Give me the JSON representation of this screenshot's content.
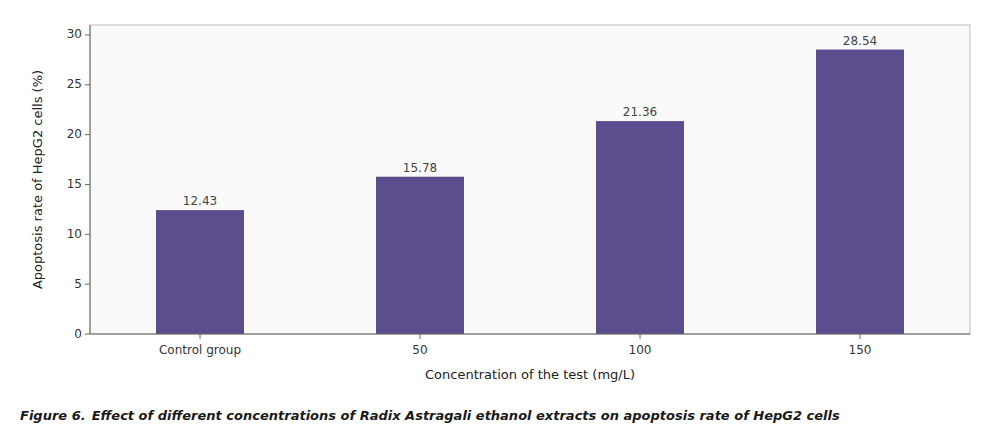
{
  "chart_data": {
    "type": "bar",
    "title": "Figure 6.",
    "subtitle": "Effect of different concentrations of Radix Astragali ethanol extracts on apoptosis rate of HepG2 cells",
    "xlabel": "Concentration of the test (mg/L)",
    "ylabel": "Apoptosis rate of HepG2 cells  (%)",
    "categories": [
      "Control group",
      "50",
      "100",
      "150"
    ],
    "values": [
      12.43,
      15.78,
      21.36,
      28.54
    ],
    "color": "#5b4d8e",
    "ylim": [
      0,
      31
    ],
    "yticks": [
      0,
      5,
      10,
      15,
      20,
      25,
      30
    ],
    "grid": false,
    "data_labels": true
  }
}
